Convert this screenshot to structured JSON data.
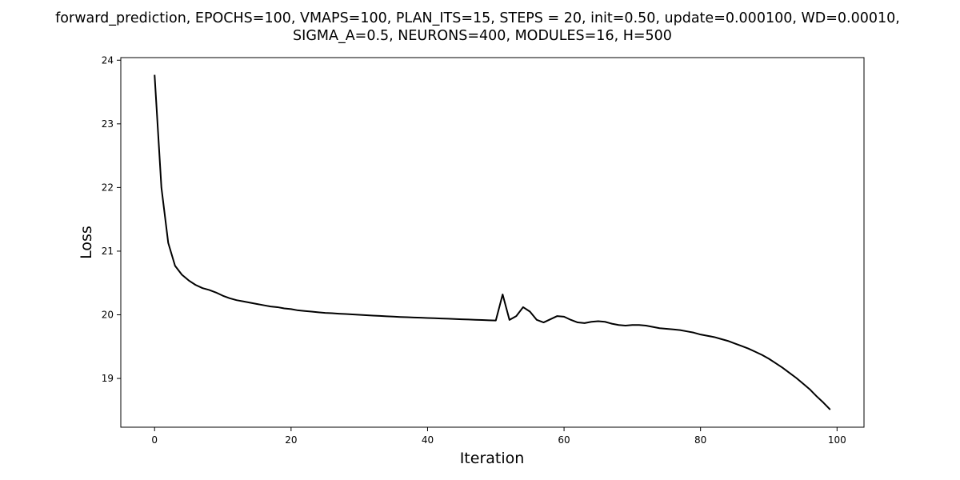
{
  "chart_data": {
    "type": "line",
    "title_lines": [
      "forward_prediction, EPOCHS=100, VMAPS=100, PLAN_ITS=15, STEPS = 20, init=0.50, update=0.000100, WD=0.00010,",
      "SIGMA_A=0.5, NEURONS=400, MODULES=16, H=500"
    ],
    "xlabel": "Iteration",
    "ylabel": "Loss",
    "xlim": [
      -4.95,
      103.95
    ],
    "ylim": [
      18.234,
      24.041
    ],
    "xticks": [
      0,
      20,
      40,
      60,
      80,
      100
    ],
    "yticks": [
      19,
      20,
      21,
      22,
      23,
      24
    ],
    "grid": false,
    "line_color": "#000000",
    "series": [
      {
        "x": [
          0,
          1,
          2,
          3,
          4,
          5,
          6,
          7,
          8,
          9,
          10,
          11,
          12,
          13,
          14,
          15,
          16,
          17,
          18,
          19,
          20,
          21,
          22,
          23,
          24,
          25,
          26,
          27,
          28,
          29,
          30,
          31,
          32,
          33,
          34,
          35,
          36,
          37,
          38,
          39,
          40,
          41,
          42,
          43,
          44,
          45,
          46,
          47,
          48,
          49,
          50,
          51,
          52,
          53,
          54,
          55,
          56,
          57,
          58,
          59,
          60,
          61,
          62,
          63,
          64,
          65,
          66,
          67,
          68,
          69,
          70,
          71,
          72,
          73,
          74,
          75,
          76,
          77,
          78,
          79,
          80,
          81,
          82,
          83,
          84,
          85,
          86,
          87,
          88,
          89,
          90,
          91,
          92,
          93,
          94,
          95,
          96,
          97,
          98,
          99
        ],
        "y": [
          23.77,
          22.0,
          21.13,
          20.77,
          20.63,
          20.54,
          20.47,
          20.42,
          20.39,
          20.35,
          20.3,
          20.26,
          20.23,
          20.21,
          20.19,
          20.17,
          20.15,
          20.13,
          20.12,
          20.1,
          20.09,
          20.07,
          20.06,
          20.05,
          20.04,
          20.03,
          20.025,
          20.018,
          20.012,
          20.006,
          20.0,
          19.994,
          19.988,
          19.982,
          19.976,
          19.971,
          19.966,
          19.962,
          19.958,
          19.954,
          19.95,
          19.946,
          19.942,
          19.938,
          19.934,
          19.93,
          19.926,
          19.922,
          19.918,
          19.914,
          19.91,
          20.32,
          19.92,
          19.98,
          20.12,
          20.05,
          19.92,
          19.88,
          19.93,
          19.98,
          19.97,
          19.92,
          19.88,
          19.87,
          19.89,
          19.9,
          19.89,
          19.86,
          19.84,
          19.83,
          19.84,
          19.84,
          19.83,
          19.81,
          19.79,
          19.78,
          19.77,
          19.76,
          19.74,
          19.72,
          19.69,
          19.67,
          19.65,
          19.62,
          19.59,
          19.55,
          19.51,
          19.47,
          19.42,
          19.37,
          19.31,
          19.24,
          19.17,
          19.09,
          19.01,
          18.92,
          18.83,
          18.72,
          18.62,
          18.51
        ]
      }
    ]
  }
}
